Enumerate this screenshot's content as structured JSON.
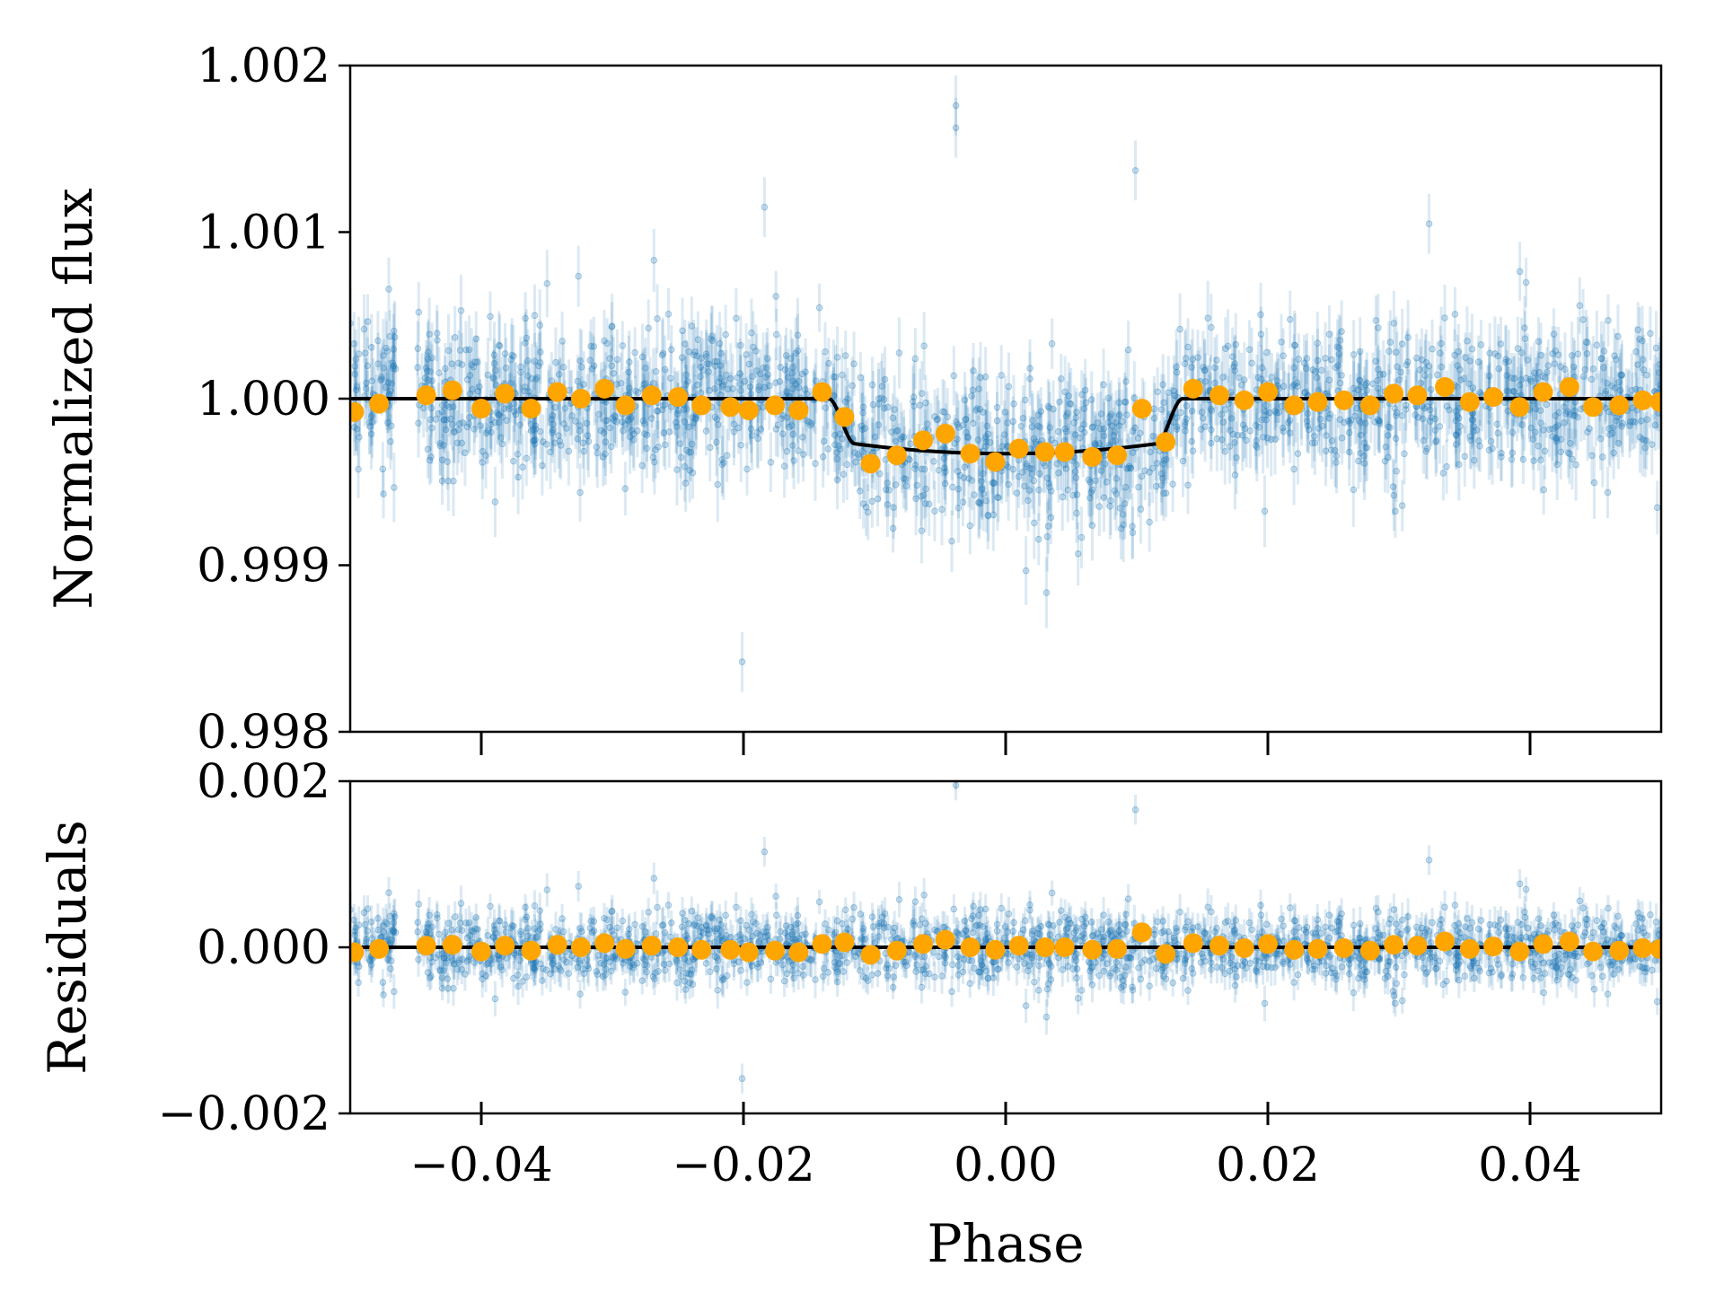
{
  "figure": {
    "xlabel": "Phase",
    "x_ticks": [
      "−0.04",
      "−0.02",
      "0.00",
      "0.02",
      "0.04"
    ],
    "colors": {
      "raw_points": "#1f77b4",
      "binned_points": "#ffa500",
      "model": "#000000",
      "axes": "#000000"
    }
  },
  "top_panel": {
    "ylabel": "Normalized flux",
    "y_ticks": [
      "0.998",
      "0.999",
      "1.000",
      "1.001",
      "1.002"
    ]
  },
  "bottom_panel": {
    "ylabel": "Residuals",
    "y_ticks": [
      "−0.002",
      "0.000",
      "0.002"
    ]
  },
  "chart_data": [
    {
      "type": "scatter",
      "panel": "top",
      "xlabel": "",
      "ylabel": "Normalized flux",
      "xlim": [
        -0.05,
        0.05
      ],
      "ylim": [
        0.998,
        1.002
      ],
      "x_ticks": [
        -0.04,
        -0.02,
        0.0,
        0.02,
        0.04
      ],
      "y_ticks": [
        0.998,
        0.999,
        1.0,
        1.001,
        1.002
      ],
      "grid": false,
      "raw_data": {
        "style": "semi-transparent points with error bars",
        "count_approx": 1800,
        "typical_error": 0.00018,
        "scatter_sigma": 0.00022,
        "outliers": [
          {
            "x": -0.0038,
            "y": 1.00176
          },
          {
            "x": 0.0099,
            "y": 1.00137
          },
          {
            "x": -0.0201,
            "y": 0.99842
          },
          {
            "x": 0.0323,
            "y": 1.00105
          },
          {
            "x": -0.0184,
            "y": 1.00115
          }
        ]
      },
      "model": {
        "name": "transit model",
        "baseline": 1.0,
        "depth": 0.00033,
        "ingress_start": -0.0135,
        "ingress_end": -0.0115,
        "egress_start": 0.0115,
        "egress_end": 0.0135
      },
      "binned": {
        "x": [
          -0.0497,
          -0.0478,
          -0.0442,
          -0.0422,
          -0.04,
          -0.0382,
          -0.0362,
          -0.0342,
          -0.0324,
          -0.0306,
          -0.029,
          -0.027,
          -0.025,
          -0.0232,
          -0.021,
          -0.0196,
          -0.0176,
          -0.0158,
          -0.014,
          -0.0123,
          -0.0103,
          -0.0083,
          -0.0063,
          -0.0046,
          -0.0027,
          -0.0008,
          0.001,
          0.003,
          0.0045,
          0.0066,
          0.0085,
          0.0104,
          0.0122,
          0.0143,
          0.0163,
          0.0182,
          0.02,
          0.022,
          0.0238,
          0.0258,
          0.0278,
          0.0296,
          0.0314,
          0.0335,
          0.0354,
          0.0372,
          0.0392,
          0.041,
          0.043,
          0.0448,
          0.0468,
          0.0486,
          0.0499
        ],
        "y": [
          0.99992,
          0.99997,
          1.00002,
          1.00005,
          0.99994,
          1.00003,
          0.99994,
          1.00004,
          1.0,
          1.00006,
          0.99996,
          1.00002,
          1.00001,
          0.99996,
          0.99995,
          0.99993,
          0.99996,
          0.99993,
          1.00004,
          0.99989,
          0.99961,
          0.99966,
          0.99975,
          0.99979,
          0.99967,
          0.99962,
          0.9997,
          0.99968,
          0.99968,
          0.99965,
          0.99966,
          0.99994,
          0.99974,
          1.00006,
          1.00002,
          0.99999,
          1.00004,
          0.99996,
          0.99998,
          0.99999,
          0.99996,
          1.00003,
          1.00002,
          1.00007,
          0.99998,
          1.00001,
          0.99995,
          1.00004,
          1.00007,
          0.99995,
          0.99996,
          0.99999,
          0.99998
        ]
      }
    },
    {
      "type": "scatter",
      "panel": "bottom",
      "xlabel": "Phase",
      "ylabel": "Residuals",
      "xlim": [
        -0.05,
        0.05
      ],
      "ylim": [
        -0.002,
        0.002
      ],
      "x_ticks": [
        -0.04,
        -0.02,
        0.0,
        0.02,
        0.04
      ],
      "y_ticks": [
        -0.002,
        0.0,
        0.002
      ],
      "grid": false,
      "raw_data": {
        "style": "semi-transparent points with error bars",
        "count_approx": 1800,
        "typical_error": 0.00018,
        "scatter_sigma": 0.00022,
        "outliers": [
          {
            "x": 0.0099,
            "y": 0.00163
          },
          {
            "x": -0.0201,
            "y": -0.00158
          },
          {
            "x": 0.0323,
            "y": 0.00105
          },
          {
            "x": -0.0184,
            "y": 0.00115
          },
          {
            "x": -0.0038,
            "y": 0.00195
          }
        ]
      },
      "zero_line": 0.0,
      "binned": {
        "x": [
          -0.0497,
          -0.0478,
          -0.0442,
          -0.0422,
          -0.04,
          -0.0382,
          -0.0362,
          -0.0342,
          -0.0324,
          -0.0306,
          -0.029,
          -0.027,
          -0.025,
          -0.0232,
          -0.021,
          -0.0196,
          -0.0176,
          -0.0158,
          -0.014,
          -0.0123,
          -0.0103,
          -0.0083,
          -0.0063,
          -0.0046,
          -0.0027,
          -0.0008,
          0.001,
          0.003,
          0.0045,
          0.0066,
          0.0085,
          0.0104,
          0.0122,
          0.0143,
          0.0163,
          0.0182,
          0.02,
          0.022,
          0.0238,
          0.0258,
          0.0278,
          0.0296,
          0.0314,
          0.0335,
          0.0354,
          0.0372,
          0.0392,
          0.041,
          0.043,
          0.0448,
          0.0468,
          0.0486,
          0.0499
        ],
        "y": [
          -6e-05,
          -2e-05,
          2e-05,
          3e-05,
          -5e-05,
          2e-05,
          -4e-05,
          3e-05,
          0.0,
          5e-05,
          -2e-05,
          2e-05,
          0.0,
          -3e-05,
          -3e-05,
          -6e-05,
          -4e-05,
          -6e-05,
          4e-05,
          6e-05,
          -9e-05,
          -4e-05,
          4e-05,
          9e-05,
          0.0,
          -3e-05,
          2e-05,
          0.0,
          0.0,
          -3e-05,
          -2e-05,
          0.00018,
          -8e-05,
          5e-05,
          2e-05,
          -1e-05,
          4e-05,
          -3e-05,
          -2e-05,
          -1e-05,
          -4e-05,
          3e-05,
          2e-05,
          7e-05,
          -2e-05,
          1e-05,
          -5e-05,
          4e-05,
          7e-05,
          -5e-05,
          -4e-05,
          -1e-05,
          -2e-05
        ]
      }
    }
  ]
}
